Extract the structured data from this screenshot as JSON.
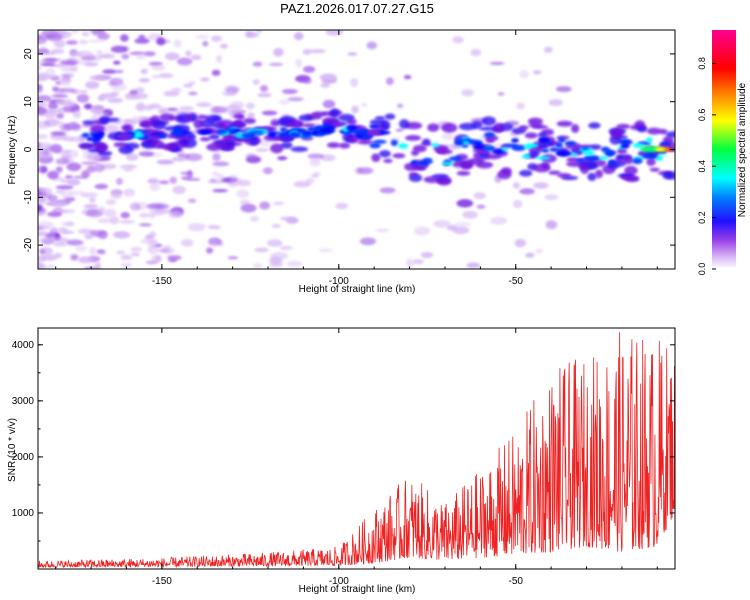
{
  "title": "PAZ1.2026.017.07.27.G15",
  "chart_data": [
    {
      "type": "heatmap",
      "title": "PAZ1.2026.017.07.27.G15",
      "xlabel": "Height of straight line (km)",
      "ylabel": "Frequency (Hz)",
      "xlim": [
        -185,
        -5
      ],
      "ylim": [
        -25,
        25
      ],
      "xticks": [
        "-150",
        "-100",
        "-50"
      ],
      "yticks": [
        "20",
        "10",
        "0",
        "-10",
        "-20"
      ],
      "colorbar": {
        "label": "Normalized spectral amplitude",
        "range": [
          0,
          0.93
        ],
        "ticks": [
          "0.8",
          "0.6",
          "0.4",
          "0.2",
          "0.0"
        ],
        "colormap": [
          "#ffffff",
          "#c8a0f0",
          "#8020e0",
          "#0000ff",
          "#00ffff",
          "#00ff00",
          "#ffff00",
          "#ff8000",
          "#ff0000",
          "#ff00a0"
        ]
      },
      "ridge": {
        "description": "dominant frequency track",
        "points": [
          [
            -172,
            2.5
          ],
          [
            -155,
            3.0
          ],
          [
            -140,
            3.8
          ],
          [
            -125,
            3.5
          ],
          [
            -110,
            3.5
          ],
          [
            -100,
            4.5
          ],
          [
            -90,
            3.0
          ],
          [
            -80,
            -0.5
          ],
          [
            -70,
            -1.0
          ],
          [
            -60,
            1.0
          ],
          [
            -50,
            0.5
          ],
          [
            -40,
            0.0
          ],
          [
            -30,
            -0.5
          ],
          [
            -20,
            -0.5
          ],
          [
            -10,
            0.0
          ],
          [
            -5,
            0.0
          ]
        ]
      }
    },
    {
      "type": "line",
      "xlabel": "Height of straight line (km)",
      "ylabel": "SNR (10 * v/v)",
      "xlim": [
        -185,
        -5
      ],
      "ylim": [
        0,
        4300
      ],
      "xticks": [
        "-150",
        "-100",
        "-50"
      ],
      "yticks": [
        "4000",
        "3000",
        "2000",
        "1000"
      ],
      "series": [
        {
          "name": "SNR",
          "color": "#ee2222",
          "envelope": {
            "x": [
              -185,
              -150,
              -120,
              -100,
              -90,
              -80,
              -70,
              -60,
              -50,
              -40,
              -30,
              -20,
              -10,
              -5
            ],
            "min": [
              30,
              40,
              50,
              60,
              100,
              200,
              150,
              200,
              250,
              300,
              400,
              300,
              400,
              1000
            ],
            "max": [
              150,
              200,
              300,
              400,
              1100,
              1700,
              1200,
              1800,
              2500,
              3600,
              3800,
              4300,
              4200,
              4000
            ]
          }
        }
      ]
    }
  ]
}
